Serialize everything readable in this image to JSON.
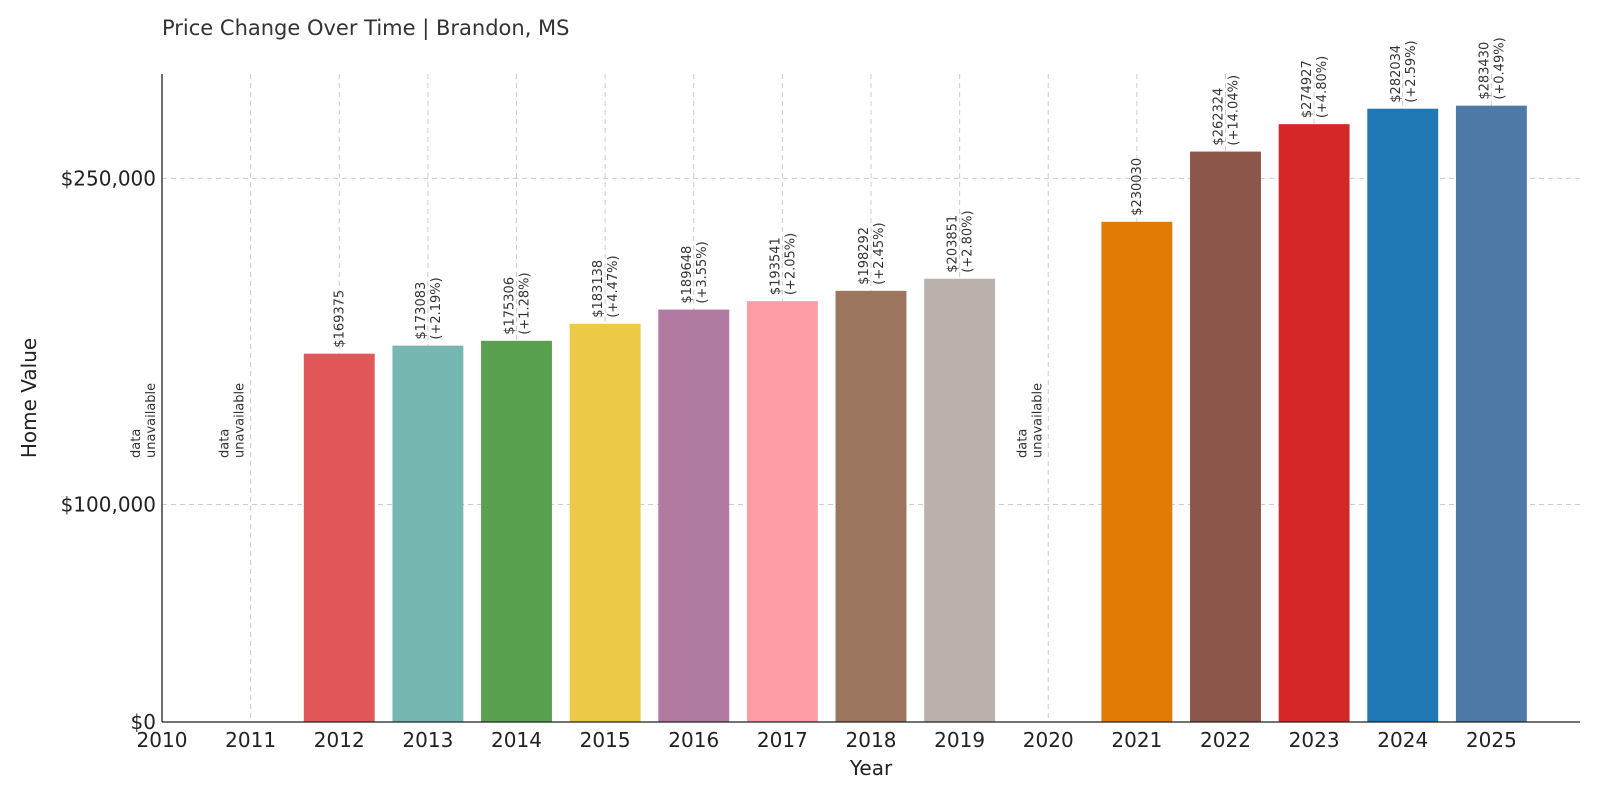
{
  "title": "Price Change Over Time | Brandon, MS",
  "chart_data": {
    "type": "bar",
    "title": "Price Change Over Time | Brandon, MS",
    "xlabel": "Year",
    "ylabel": "Home Value",
    "ylim": [
      0,
      298000
    ],
    "xlim": [
      2010,
      2026
    ],
    "grid": true,
    "unavailable_text": [
      "data",
      "unavailable"
    ],
    "y_ticks": [
      {
        "value": 0,
        "label": "$0"
      },
      {
        "value": 100000,
        "label": "$100,000"
      },
      {
        "value": 250000,
        "label": "$250,000"
      }
    ],
    "x_ticks": [
      2010,
      2011,
      2012,
      2013,
      2014,
      2015,
      2016,
      2017,
      2018,
      2019,
      2020,
      2021,
      2022,
      2023,
      2024,
      2025
    ],
    "bars": [
      {
        "year": 2010,
        "value": null
      },
      {
        "year": 2011,
        "value": null
      },
      {
        "year": 2012,
        "value": 169375,
        "change": "",
        "color": "#e15759"
      },
      {
        "year": 2013,
        "value": 173083,
        "change": "(+2.19%)",
        "color": "#76b7b2"
      },
      {
        "year": 2014,
        "value": 175306,
        "change": "(+1.28%)",
        "color": "#59a14f"
      },
      {
        "year": 2015,
        "value": 183138,
        "change": "(+4.47%)",
        "color": "#edc948"
      },
      {
        "year": 2016,
        "value": 189648,
        "change": "(+3.55%)",
        "color": "#b07aa1"
      },
      {
        "year": 2017,
        "value": 193541,
        "change": "(+2.05%)",
        "color": "#ff9da7"
      },
      {
        "year": 2018,
        "value": 198292,
        "change": "(+2.45%)",
        "color": "#9c755f"
      },
      {
        "year": 2019,
        "value": 203851,
        "change": "(+2.80%)",
        "color": "#bab0ac"
      },
      {
        "year": 2020,
        "value": null
      },
      {
        "year": 2021,
        "value": 230030,
        "change": "",
        "color": "#e07b08"
      },
      {
        "year": 2022,
        "value": 262324,
        "change": "(+14.04%)",
        "color": "#8c564b"
      },
      {
        "year": 2023,
        "value": 274927,
        "change": "(+4.80%)",
        "color": "#d62728"
      },
      {
        "year": 2024,
        "value": 282034,
        "change": "(+2.59%)",
        "color": "#1f77b4"
      },
      {
        "year": 2025,
        "value": 283430,
        "change": "(+0.49%)",
        "color": "#4e79a7"
      }
    ]
  }
}
